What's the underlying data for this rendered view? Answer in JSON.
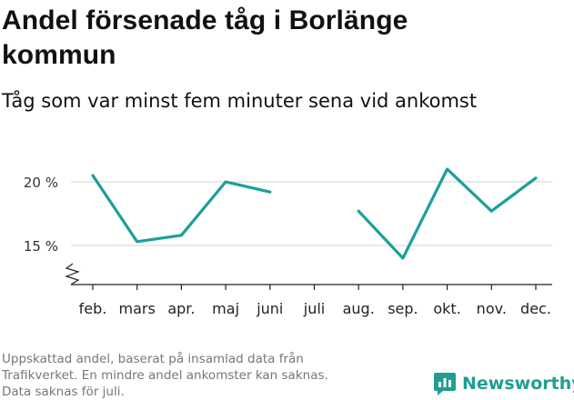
{
  "title": "Andel försenade tåg i Borlänge kommun",
  "subtitle": "Tåg som var minst fem minuter sena vid ankomst",
  "chart_data": {
    "type": "line",
    "categories": [
      "feb.",
      "mars",
      "apr.",
      "maj",
      "juni",
      "juli",
      "aug.",
      "sep.",
      "okt.",
      "nov.",
      "dec."
    ],
    "series": [
      {
        "name": "Andel försenade tåg",
        "values": [
          20.5,
          15.3,
          15.8,
          20.0,
          19.2,
          null,
          17.7,
          14.0,
          21.0,
          17.7,
          20.3
        ]
      }
    ],
    "yticks": [
      15,
      20
    ],
    "ytick_labels": [
      "15 %",
      "20 %"
    ],
    "ylim": [
      12,
      22
    ],
    "axis_break": true,
    "line_color": "#1aa097",
    "grid": true
  },
  "footnote": {
    "lines": [
      "Uppskattad andel, baserat på insamlad data från",
      "Trafikverket. En mindre andel ankomster kan saknas.",
      "Data saknas för juli."
    ]
  },
  "brand": {
    "name": "Newsworthy",
    "icon": "newsworthy-logo-icon",
    "color": "#1f9e91"
  }
}
